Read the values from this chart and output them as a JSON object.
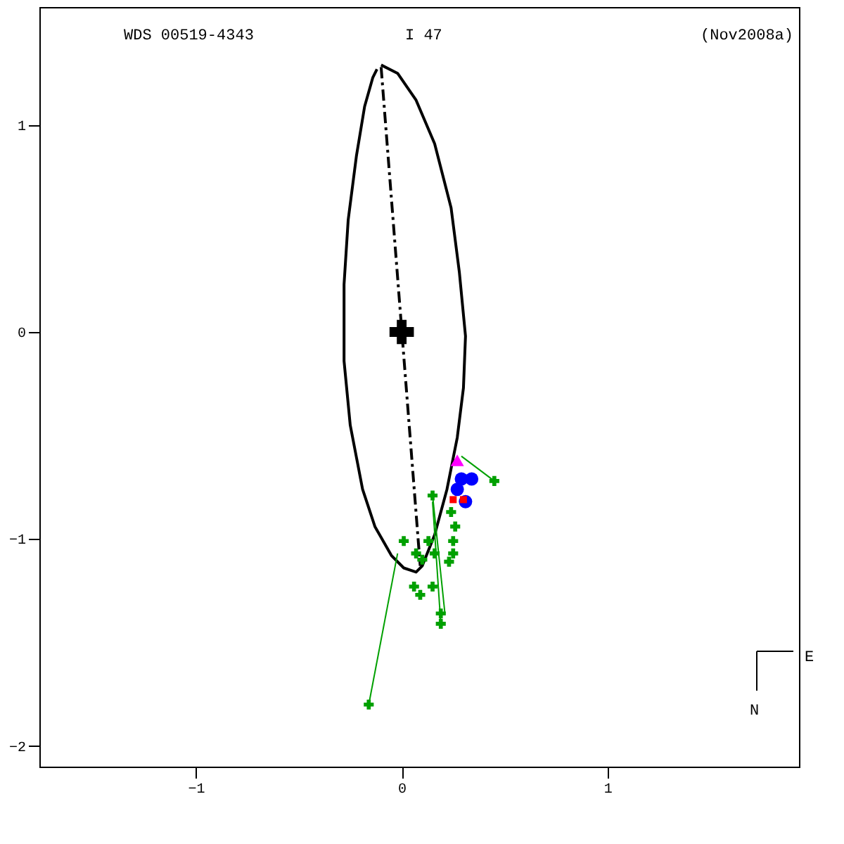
{
  "chart_data": {
    "type": "line",
    "annotations": [
      "WDS 00519-4343",
      "I    47",
      "(Nov2008a)",
      "N",
      "E"
    ],
    "xlim": [
      -1.76,
      1.93
    ],
    "ylim": [
      -2.1,
      1.57
    ],
    "xticks": [
      -1,
      0,
      1
    ],
    "yticks": [
      -2,
      -1,
      0,
      1
    ],
    "grid": false,
    "series": [
      {
        "color": "#000000",
        "line_style": "dashed",
        "x": [
          -0.1,
          0.09
        ],
        "values": [
          1.28,
          -1.13
        ]
      },
      {
        "color": "#000000",
        "line_style": "solid",
        "x": [
          -0.1,
          -0.02,
          0.07,
          0.16,
          0.24,
          0.28,
          0.31,
          0.3,
          0.27,
          0.22,
          0.16,
          0.1,
          0.07,
          0.01,
          -0.05,
          -0.13,
          -0.19,
          -0.25,
          -0.28,
          -0.28,
          -0.26,
          -0.22,
          -0.18,
          -0.14,
          -0.12
        ],
        "values": [
          1.29,
          1.25,
          1.12,
          0.91,
          0.6,
          0.29,
          -0.02,
          -0.27,
          -0.51,
          -0.76,
          -0.98,
          -1.13,
          -1.16,
          -1.14,
          -1.08,
          -0.94,
          -0.76,
          -0.45,
          -0.14,
          0.23,
          0.54,
          0.85,
          1.09,
          1.23,
          1.27
        ]
      },
      {
        "type": "scatter",
        "color": "#000000",
        "marker": "cross",
        "x": [
          0
        ],
        "values": [
          0
        ]
      },
      {
        "color": "#00a000",
        "line_style": "solid",
        "x": [
          0.45,
          0.29
        ],
        "values": [
          -0.72,
          -0.6
        ]
      },
      {
        "color": "#00a000",
        "line_style": "solid",
        "x": [
          -0.16,
          -0.02
        ],
        "values": [
          -1.8,
          -1.07
        ]
      },
      {
        "color": "#00a000",
        "line_style": "solid",
        "x": [
          0.19,
          0.15
        ],
        "values": [
          -1.41,
          -0.82
        ]
      },
      {
        "color": "#00a000",
        "line_style": "solid",
        "x": [
          0.15,
          0.21
        ],
        "values": [
          -0.79,
          -1.36
        ]
      },
      {
        "type": "scatter",
        "color": "#00a000",
        "marker": "cross",
        "x": [
          0.45,
          0.15,
          0.01,
          0.13,
          0.07,
          0.16,
          0.25,
          0.23,
          0.1,
          0.06,
          0.09,
          0.15,
          0.19,
          0.19,
          0.26,
          0.25,
          0.24,
          -0.16
        ],
        "values": [
          -0.72,
          -0.79,
          -1.01,
          -1.01,
          -1.07,
          -1.07,
          -1.07,
          -1.11,
          -1.1,
          -1.23,
          -1.27,
          -1.23,
          -1.36,
          -1.41,
          -0.94,
          -1.01,
          -0.87,
          -1.8
        ]
      },
      {
        "type": "scatter",
        "color": "#0000ff",
        "marker": "circle",
        "x": [
          0.29,
          0.34,
          0.27,
          0.31
        ],
        "values": [
          -0.71,
          -0.71,
          -0.76,
          -0.82
        ]
      },
      {
        "type": "scatter",
        "color": "#ff00ff",
        "marker": "triangle",
        "x": [
          0.27
        ],
        "values": [
          -0.62
        ]
      },
      {
        "type": "scatter",
        "color": "#ff0000",
        "marker": "square",
        "x": [
          0.25,
          0.3
        ],
        "values": [
          -0.81,
          -0.81
        ]
      }
    ]
  }
}
